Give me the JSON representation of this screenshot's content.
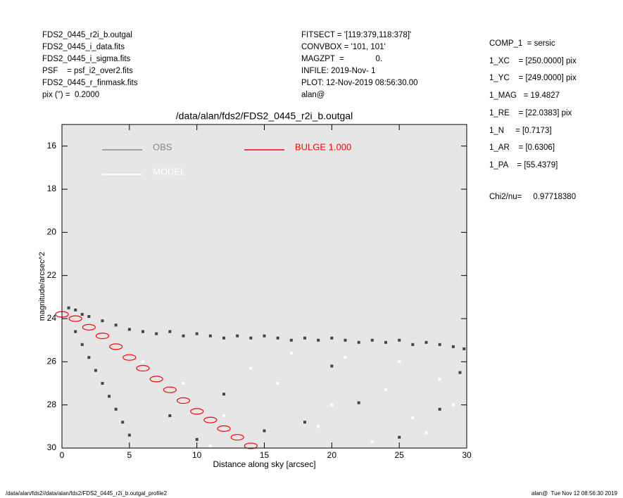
{
  "header": {
    "left": [
      "FDS2_0445_r2i_b.outgal",
      "FDS2_0445_i_data.fits",
      "FDS2_0445_i_sigma.fits",
      "PSF    = psf_i2_over2.fits",
      "FDS2_0445_r_finmask.fits",
      "pix (\") =  0.2000"
    ],
    "middle": [
      "FITSECT = '[119:379,118:378]'",
      "CONVBOX = '101, 101'",
      "MAGZPT  =              0.",
      "INFILE: 2019-Nov- 1",
      "PLOT: 12-Nov-2019 08:56:30.00",
      "alan@"
    ],
    "params": [
      "COMP_1  = sersic",
      "1_XC    = [250.0000] pix",
      "1_YC    = [249.0000] pix",
      "1_MAG   = 19.4827",
      "1_RE    = [22.0383] pix",
      "1_N     = [0.7173]",
      "1_AR    = [0.6306]",
      "1_PA    = [55.4379]"
    ],
    "chi2": "Chi2/nu=     0.97718380"
  },
  "footer": {
    "left": "/data/alan/fds2//data/alan/fds2/FDS2_0445_r2i_b.outgal_profile2",
    "right": "alan@  Tue Nov 12 08:56:30 2019"
  },
  "chart_data": {
    "type": "scatter",
    "title": "/data/alan/fds2/FDS2_0445_r2i_b.outgal",
    "x_label": "Distance along sky [arcsec]",
    "y_label": "magnitude/arcsec^2",
    "xlim": [
      0,
      30
    ],
    "ylim": [
      30,
      15
    ],
    "xticks": [
      0,
      5,
      10,
      15,
      20,
      25,
      30
    ],
    "yticks": [
      16,
      18,
      20,
      22,
      24,
      26,
      28,
      30
    ],
    "background": "#e6e6e6",
    "series": [
      {
        "name": "OBS",
        "color": "#444444",
        "legend_color": "#888888",
        "x": [
          0.5,
          1,
          1.5,
          2,
          3,
          4,
          5,
          6,
          7,
          8,
          9,
          10,
          11,
          12,
          13,
          14,
          15,
          16,
          17,
          18,
          19,
          20,
          21,
          22,
          23,
          24,
          25,
          26,
          27,
          28,
          29,
          29.8,
          1,
          1.5,
          2,
          2.5,
          3,
          3.5,
          4,
          4.5,
          5,
          8,
          12,
          15,
          18,
          22,
          25,
          28,
          29.5,
          20,
          10
        ],
        "values": [
          23.5,
          23.6,
          23.8,
          23.9,
          24.1,
          24.3,
          24.5,
          24.6,
          24.7,
          24.6,
          24.8,
          24.7,
          24.8,
          24.9,
          24.8,
          24.9,
          24.8,
          24.9,
          25.0,
          24.9,
          25.0,
          24.9,
          25.0,
          25.1,
          25.0,
          25.1,
          25.0,
          25.2,
          25.1,
          25.2,
          25.3,
          25.4,
          24.6,
          25.2,
          25.8,
          26.4,
          27.0,
          27.6,
          28.2,
          28.8,
          29.4,
          28.5,
          27.5,
          29.2,
          28.8,
          27.9,
          29.5,
          28.2,
          26.5,
          26.2,
          29.6
        ]
      },
      {
        "name": "MODEL",
        "color": "#ffffff",
        "legend_color": "#ffffff",
        "x": [
          6,
          9,
          12,
          16,
          19,
          21,
          24,
          26,
          28,
          14,
          23,
          17,
          27,
          29,
          11,
          20,
          25
        ],
        "values": [
          26,
          27,
          28.5,
          27,
          29,
          25.8,
          27.3,
          28.6,
          26.8,
          26.3,
          29.7,
          25.6,
          29.3,
          28,
          29.9,
          28,
          26
        ]
      },
      {
        "name": "BULGE 1.000",
        "color": "#ff0000",
        "legend_color": "#ff0000",
        "x": [
          0,
          1,
          2,
          3,
          4,
          5,
          6,
          7,
          8,
          9,
          10,
          11,
          12,
          13,
          14
        ],
        "values": [
          23.8,
          24.0,
          24.4,
          24.8,
          25.3,
          25.8,
          26.3,
          26.8,
          27.3,
          27.8,
          28.3,
          28.7,
          29.1,
          29.5,
          29.9
        ]
      }
    ]
  }
}
